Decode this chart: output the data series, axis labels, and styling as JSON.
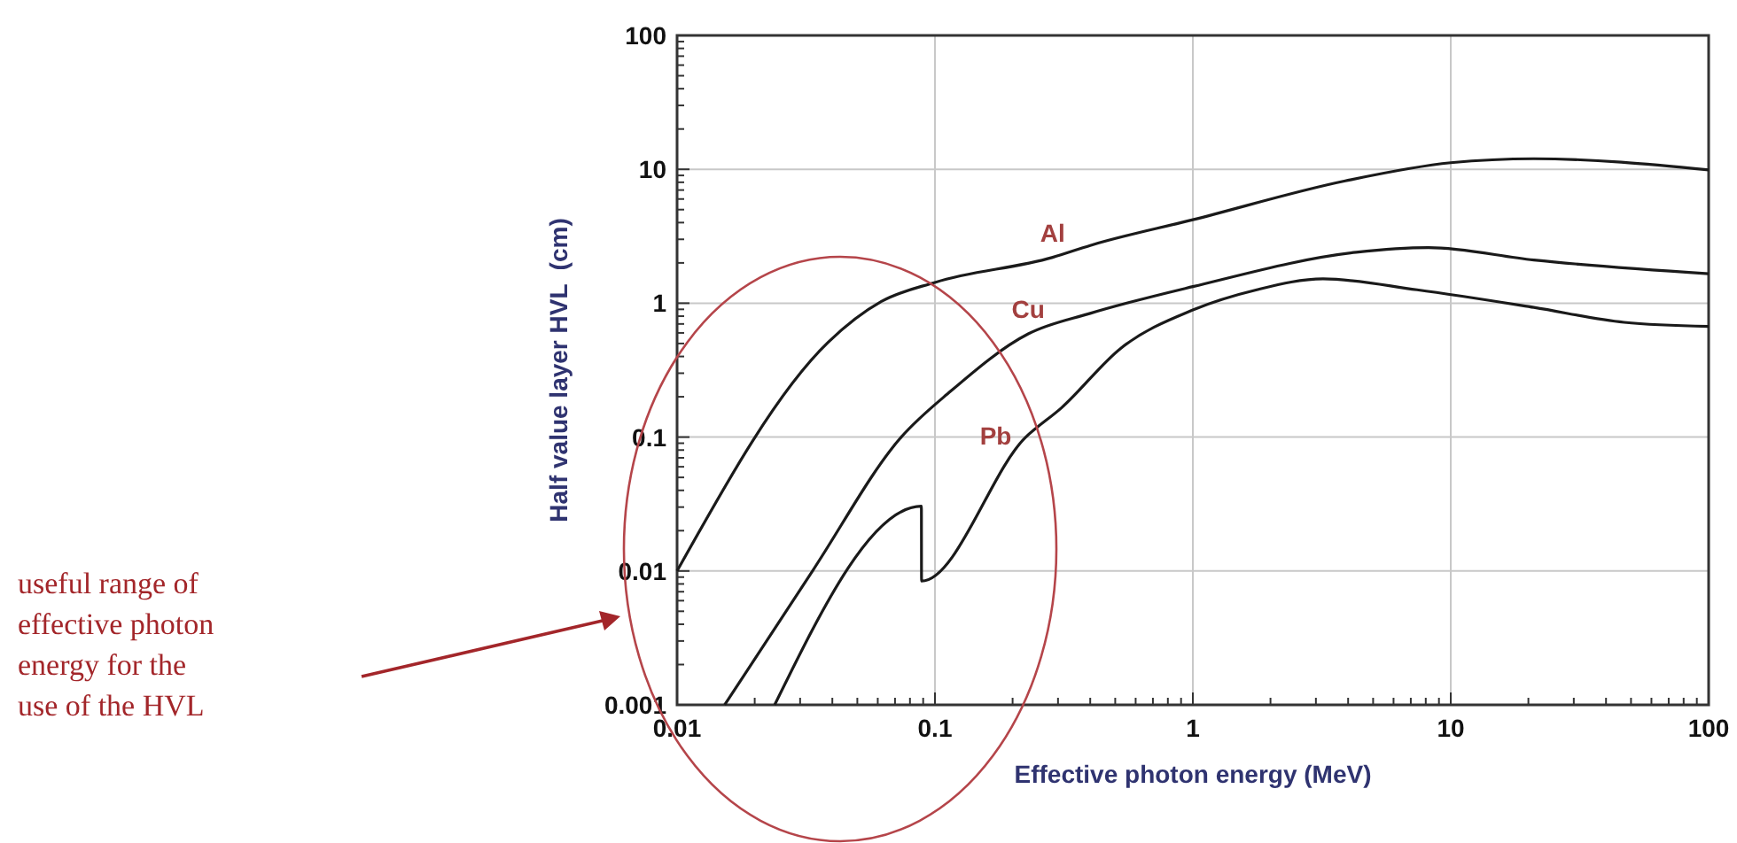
{
  "chart_data": {
    "type": "line",
    "xlabel": "Effective photon energy (MeV)",
    "ylabel": "Half value layer HVL  (cm)",
    "log": "xy",
    "grid": true,
    "legend": false,
    "marker": "none",
    "line_style": "solid",
    "xlim": [
      0.01,
      100
    ],
    "ylim": [
      0.001,
      100
    ],
    "xticks": [
      0.01,
      {
        "value": 0.02,
        "label": null
      },
      {
        "value": 0.03,
        "label": null
      },
      {
        "value": 0.04,
        "label": null
      },
      {
        "value": 0.05,
        "label": null
      },
      {
        "value": 0.06,
        "label": null
      },
      {
        "value": 0.07,
        "label": null
      },
      {
        "value": 0.08,
        "label": null
      },
      {
        "value": 0.09,
        "label": null
      },
      0.1,
      {
        "value": 0.2,
        "label": null
      },
      {
        "value": 0.3,
        "label": null
      },
      {
        "value": 0.4,
        "label": null
      },
      {
        "value": 0.5,
        "label": null
      },
      {
        "value": 0.6,
        "label": null
      },
      {
        "value": 0.7,
        "label": null
      },
      {
        "value": 0.8,
        "label": null
      },
      {
        "value": 0.9,
        "label": null
      },
      1,
      {
        "value": 2,
        "label": null
      },
      {
        "value": 3,
        "label": null
      },
      {
        "value": 4,
        "label": null
      },
      {
        "value": 5,
        "label": null
      },
      {
        "value": 6,
        "label": null
      },
      {
        "value": 7,
        "label": null
      },
      {
        "value": 8,
        "label": null
      },
      {
        "value": 9,
        "label": null
      },
      10,
      {
        "value": 20,
        "label": null
      },
      {
        "value": 30,
        "label": null
      },
      {
        "value": 40,
        "label": null
      },
      {
        "value": 50,
        "label": null
      },
      {
        "value": 60,
        "label": null
      },
      {
        "value": 70,
        "label": null
      },
      {
        "value": 80,
        "label": null
      },
      {
        "value": 90,
        "label": null
      },
      100
    ],
    "yticks": [
      0.001,
      {
        "value": 0.002,
        "label": null
      },
      {
        "value": 0.003,
        "label": null
      },
      {
        "value": 0.004,
        "label": null
      },
      {
        "value": 0.005,
        "label": null
      },
      {
        "value": 0.006,
        "label": null
      },
      {
        "value": 0.007,
        "label": null
      },
      {
        "value": 0.008,
        "label": null
      },
      {
        "value": 0.009,
        "label": null
      },
      0.01,
      {
        "value": 0.02,
        "label": null
      },
      {
        "value": 0.03,
        "label": null
      },
      {
        "value": 0.04,
        "label": null
      },
      {
        "value": 0.05,
        "label": null
      },
      {
        "value": 0.06,
        "label": null
      },
      {
        "value": 0.07,
        "label": null
      },
      {
        "value": 0.08,
        "label": null
      },
      {
        "value": 0.09,
        "label": null
      },
      0.1,
      {
        "value": 0.2,
        "label": null
      },
      {
        "value": 0.3,
        "label": null
      },
      {
        "value": 0.4,
        "label": null
      },
      {
        "value": 0.5,
        "label": null
      },
      {
        "value": 0.6,
        "label": null
      },
      {
        "value": 0.7,
        "label": null
      },
      {
        "value": 0.8,
        "label": null
      },
      {
        "value": 0.9,
        "label": null
      },
      1,
      {
        "value": 2,
        "label": null
      },
      {
        "value": 3,
        "label": null
      },
      {
        "value": 4,
        "label": null
      },
      {
        "value": 5,
        "label": null
      },
      {
        "value": 6,
        "label": null
      },
      {
        "value": 7,
        "label": null
      },
      {
        "value": 8,
        "label": null
      },
      {
        "value": 9,
        "label": null
      },
      10,
      {
        "value": 20,
        "label": null
      },
      {
        "value": 30,
        "label": null
      },
      {
        "value": 40,
        "label": null
      },
      {
        "value": 50,
        "label": null
      },
      {
        "value": 60,
        "label": null
      },
      {
        "value": 70,
        "label": null
      },
      {
        "value": 80,
        "label": null
      },
      {
        "value": 90,
        "label": null
      },
      100
    ],
    "series": [
      {
        "name": "Al",
        "color": "#1a1a1a",
        "x": [
          0.01,
          0.0385,
          0.062,
          0.1,
          0.286,
          0.4,
          1,
          3.9,
          10,
          21,
          100
        ],
        "values": [
          0.01,
          0.51,
          1.03,
          1.43,
          2.2,
          2.7,
          4.2,
          8.2,
          11.2,
          12,
          9.9
        ]
      },
      {
        "name": "Cu",
        "color": "#1a1a1a",
        "x": [
          0.0153,
          0.0335,
          0.074,
          0.115,
          0.23,
          0.4,
          1,
          4.3,
          8.2,
          21,
          100
        ],
        "values": [
          0.001,
          0.01,
          0.1,
          0.22,
          0.59,
          0.84,
          1.33,
          2.4,
          2.6,
          2.1,
          1.66
        ]
      },
      {
        "name": "Pb",
        "color": "#1a1a1a",
        "x": [
          0.0239,
          0.0886,
          0.0887,
          0.225,
          0.31,
          0.525,
          1,
          1.77,
          3.2,
          7.4,
          21,
          47,
          100
        ],
        "values": [
          0.001,
          0.0305,
          0.0084,
          0.1,
          0.166,
          0.46,
          0.89,
          1.26,
          1.52,
          1.26,
          0.93,
          0.72,
          0.67
        ]
      }
    ],
    "annotations": [
      "useful range of effective photon energy for the use of the HVL"
    ]
  }
}
